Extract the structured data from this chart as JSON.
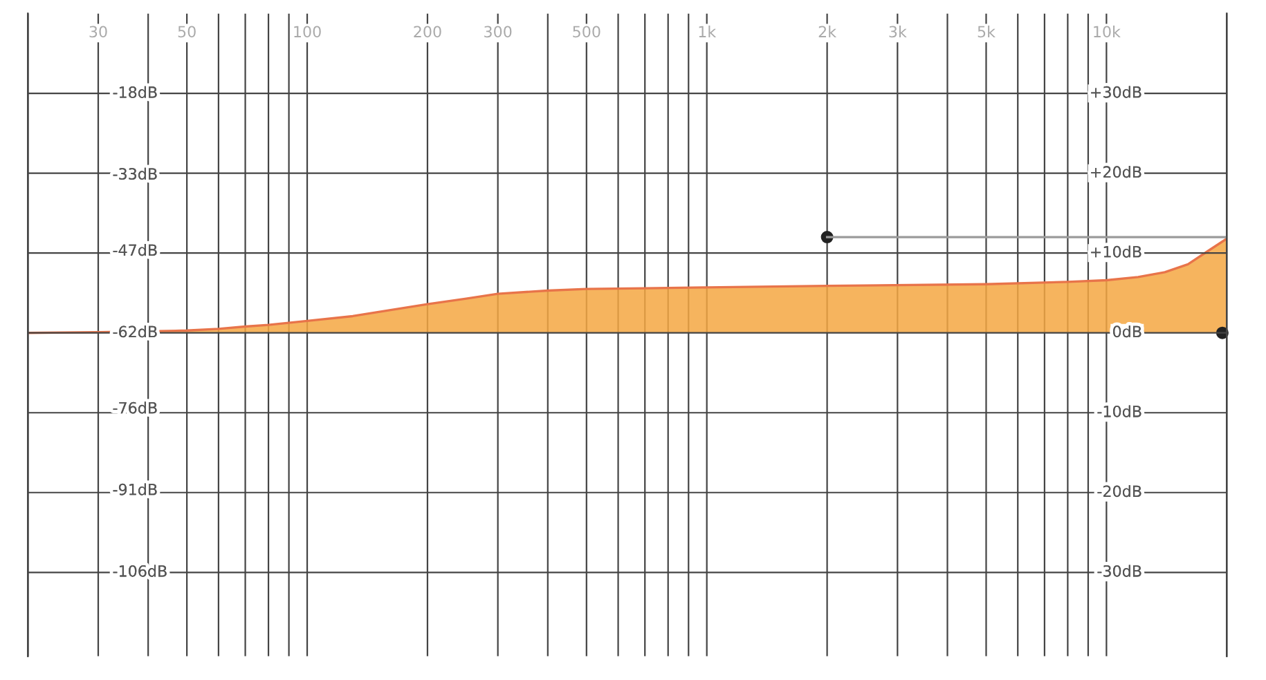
{
  "chart_data": {
    "type": "area",
    "log": "x",
    "grid": true,
    "xlim": [
      20,
      20000
    ],
    "xticks": [
      {
        "value": 20,
        "label": null
      },
      {
        "value": 30,
        "label": "30"
      },
      {
        "value": 40,
        "label": null
      },
      {
        "value": 50,
        "label": "50"
      },
      {
        "value": 60,
        "label": null
      },
      {
        "value": 70,
        "label": null
      },
      {
        "value": 80,
        "label": null
      },
      {
        "value": 90,
        "label": null
      },
      {
        "value": 100,
        "label": "100"
      },
      {
        "value": 200,
        "label": "200"
      },
      {
        "value": 300,
        "label": "300"
      },
      {
        "value": 400,
        "label": null
      },
      {
        "value": 500,
        "label": "500"
      },
      {
        "value": 600,
        "label": null
      },
      {
        "value": 700,
        "label": null
      },
      {
        "value": 800,
        "label": null
      },
      {
        "value": 900,
        "label": null
      },
      {
        "value": 1000,
        "label": "1k"
      },
      {
        "value": 2000,
        "label": "2k"
      },
      {
        "value": 3000,
        "label": "3k"
      },
      {
        "value": 4000,
        "label": null
      },
      {
        "value": 5000,
        "label": "5k"
      },
      {
        "value": 6000,
        "label": null
      },
      {
        "value": 7000,
        "label": null
      },
      {
        "value": 8000,
        "label": null
      },
      {
        "value": 9000,
        "label": null
      },
      {
        "value": 10000,
        "label": "10k"
      },
      {
        "value": 20000,
        "label": null
      }
    ],
    "ylim": [
      -121.4,
      -3.3
    ],
    "yticks": [
      {
        "value": -18,
        "label": "-18dB"
      },
      {
        "value": -33,
        "label": "-33dB"
      },
      {
        "value": -47,
        "label": "-47dB"
      },
      {
        "value": -62,
        "label": "-62dB"
      },
      {
        "value": -76,
        "label": "-76dB"
      },
      {
        "value": -91,
        "label": "-91dB"
      },
      {
        "value": -106,
        "label": "-106dB"
      }
    ],
    "y2lim": [
      -40.5,
      40
    ],
    "y2ticks": [
      {
        "value": 30,
        "label": "+30dB"
      },
      {
        "value": 20,
        "label": "+20dB"
      },
      {
        "value": 10,
        "label": "+10dB"
      },
      {
        "value": 0,
        "label": "0dB"
      },
      {
        "value": -10,
        "label": "-10dB"
      },
      {
        "value": -20,
        "label": "-20dB"
      },
      {
        "value": -30,
        "label": "-30dB"
      }
    ],
    "series": [
      {
        "axis": "y2",
        "color": "#f4a742",
        "x": [
          20,
          30,
          40,
          50,
          60,
          70,
          80,
          100,
          130,
          150,
          200,
          250,
          300,
          400,
          500,
          700,
          1000,
          2000,
          5000,
          8000,
          10000,
          12000,
          14000,
          16000,
          18000,
          20000
        ],
        "values": [
          0,
          0.1,
          0.2,
          0.3,
          0.5,
          0.8,
          1.0,
          1.5,
          2.1,
          2.6,
          3.6,
          4.3,
          4.9,
          5.3,
          5.5,
          5.6,
          5.7,
          5.9,
          6.1,
          6.4,
          6.6,
          7.0,
          7.6,
          8.6,
          10.3,
          11.8
        ]
      },
      {
        "type": "line",
        "axis": "y2",
        "color": "#9a9a9a",
        "x": [
          2000,
          20000
        ],
        "values": [
          12,
          12
        ]
      },
      {
        "type": "scatter",
        "axis": "y2",
        "color": "#222222",
        "marker": "circle",
        "x": [
          2000,
          19500
        ],
        "values": [
          12,
          0
        ]
      }
    ]
  }
}
